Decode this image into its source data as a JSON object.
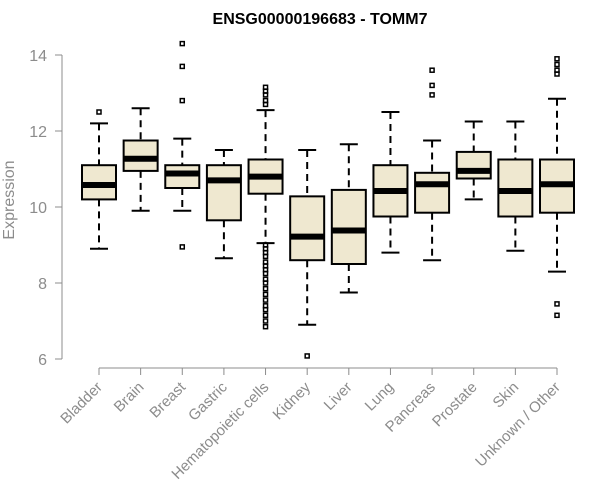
{
  "chart_data": {
    "type": "boxplot",
    "title": "ENSG00000196683 - TOMM7",
    "xlabel": "",
    "ylabel": "Expression",
    "ylim": [
      6,
      14
    ],
    "yticks": [
      "6",
      "8",
      "10",
      "12",
      "14"
    ],
    "categories": [
      "Bladder",
      "Brain",
      "Breast",
      "Gastric",
      "Hematopoietic cells",
      "Kidney",
      "Liver",
      "Lung",
      "Pancreas",
      "Prostate",
      "Skin",
      "Unknown / Other"
    ],
    "boxes": [
      {
        "name": "Bladder",
        "whisker_low": 8.9,
        "q1": 10.2,
        "median": 10.58,
        "q3": 11.1,
        "whisker_high": 12.2,
        "outliers": [
          12.5
        ]
      },
      {
        "name": "Brain",
        "whisker_low": 9.9,
        "q1": 10.95,
        "median": 11.27,
        "q3": 11.75,
        "whisker_high": 12.6,
        "outliers": []
      },
      {
        "name": "Breast",
        "whisker_low": 9.9,
        "q1": 10.5,
        "median": 10.88,
        "q3": 11.1,
        "whisker_high": 11.8,
        "outliers": [
          14.3,
          13.7,
          12.8,
          8.95
        ]
      },
      {
        "name": "Gastric",
        "whisker_low": 8.65,
        "q1": 9.65,
        "median": 10.7,
        "q3": 11.1,
        "whisker_high": 11.5,
        "outliers": []
      },
      {
        "name": "Hematopoietic cells",
        "whisker_low": 9.05,
        "q1": 10.35,
        "median": 10.8,
        "q3": 11.25,
        "whisker_high": 12.55,
        "outliers": [
          13.15,
          13.05,
          12.95,
          12.8,
          12.7,
          9.0,
          8.9,
          8.8,
          8.7,
          8.55,
          8.45,
          8.35,
          8.25,
          8.1,
          8.0,
          7.85,
          7.7,
          7.55,
          7.4,
          7.3,
          7.15,
          7.0,
          6.85
        ]
      },
      {
        "name": "Kidney",
        "whisker_low": 6.9,
        "q1": 8.6,
        "median": 9.22,
        "q3": 10.28,
        "whisker_high": 11.5,
        "outliers": [
          6.08
        ]
      },
      {
        "name": "Liver",
        "whisker_low": 7.75,
        "q1": 8.5,
        "median": 9.38,
        "q3": 10.45,
        "whisker_high": 11.65,
        "outliers": []
      },
      {
        "name": "Lung",
        "whisker_low": 8.8,
        "q1": 9.75,
        "median": 10.42,
        "q3": 11.1,
        "whisker_high": 12.5,
        "outliers": []
      },
      {
        "name": "Pancreas",
        "whisker_low": 8.6,
        "q1": 9.85,
        "median": 10.6,
        "q3": 10.9,
        "whisker_high": 11.75,
        "outliers": [
          13.6,
          13.2,
          12.95
        ]
      },
      {
        "name": "Prostate",
        "whisker_low": 10.2,
        "q1": 10.75,
        "median": 10.95,
        "q3": 11.45,
        "whisker_high": 12.25,
        "outliers": []
      },
      {
        "name": "Skin",
        "whisker_low": 8.85,
        "q1": 9.75,
        "median": 10.42,
        "q3": 11.25,
        "whisker_high": 12.25,
        "outliers": []
      },
      {
        "name": "Unknown / Other",
        "whisker_low": 8.3,
        "q1": 9.85,
        "median": 10.6,
        "q3": 11.25,
        "whisker_high": 12.85,
        "outliers": [
          13.9,
          13.75,
          13.6,
          13.5,
          7.45,
          7.15
        ]
      }
    ],
    "colors": {
      "box_fill": "#efe8d0",
      "stroke": "#000000",
      "axis": "#8c8c8c"
    }
  }
}
